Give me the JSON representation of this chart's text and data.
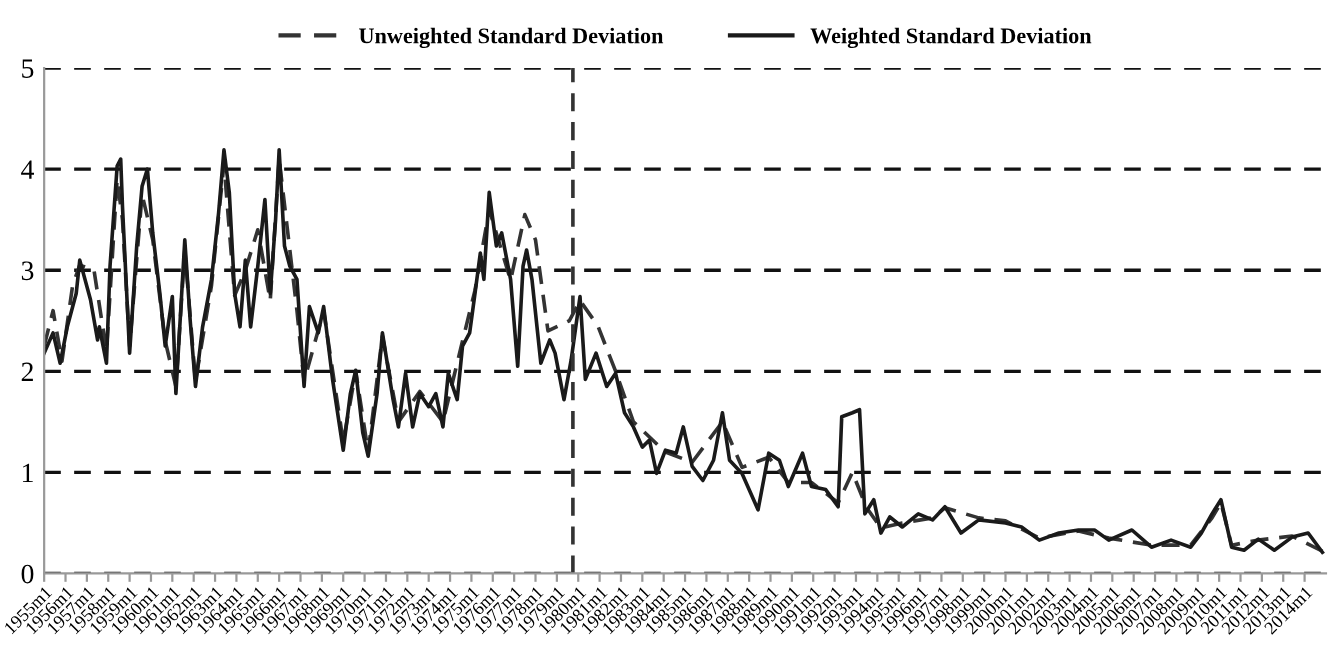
{
  "chart_data": {
    "type": "line",
    "xlim": [
      "1955-01",
      "2015-01"
    ],
    "xticks": [
      {
        "value": "1955-01",
        "label": "1955m1"
      },
      {
        "value": "1956-01",
        "label": "1956m1"
      },
      {
        "value": "1957-01",
        "label": "1957m1"
      },
      {
        "value": "1958-01",
        "label": "1958m1"
      },
      {
        "value": "1959-01",
        "label": "1959m1"
      },
      {
        "value": "1960-01",
        "label": "1960m1"
      },
      {
        "value": "1961-01",
        "label": "1961m1"
      },
      {
        "value": "1962-01",
        "label": "1962m1"
      },
      {
        "value": "1963-01",
        "label": "1963m1"
      },
      {
        "value": "1964-01",
        "label": "1964m1"
      },
      {
        "value": "1965-01",
        "label": "1965m1"
      },
      {
        "value": "1966-01",
        "label": "1966m1"
      },
      {
        "value": "1967-01",
        "label": "1967m1"
      },
      {
        "value": "1968-01",
        "label": "1968m1"
      },
      {
        "value": "1969-01",
        "label": "1969m1"
      },
      {
        "value": "1970-01",
        "label": "1970m1"
      },
      {
        "value": "1971-01",
        "label": "1971m1"
      },
      {
        "value": "1972-01",
        "label": "1972m1"
      },
      {
        "value": "1973-01",
        "label": "1973m1"
      },
      {
        "value": "1974-01",
        "label": "1974m1"
      },
      {
        "value": "1975-01",
        "label": "1975m1"
      },
      {
        "value": "1976-01",
        "label": "1976m1"
      },
      {
        "value": "1977-01",
        "label": "1977m1"
      },
      {
        "value": "1978-01",
        "label": "1978m1"
      },
      {
        "value": "1979-01",
        "label": "1979m1"
      },
      {
        "value": "1980-01",
        "label": "1980m1"
      },
      {
        "value": "1981-01",
        "label": "1981m1"
      },
      {
        "value": "1982-01",
        "label": "1982m1"
      },
      {
        "value": "1983-01",
        "label": "1983m1"
      },
      {
        "value": "1984-01",
        "label": "1984m1"
      },
      {
        "value": "1985-01",
        "label": "1985m1"
      },
      {
        "value": "1986-01",
        "label": "1986m1"
      },
      {
        "value": "1987-01",
        "label": "1987m1"
      },
      {
        "value": "1988-01",
        "label": "1988m1"
      },
      {
        "value": "1989-01",
        "label": "1989m1"
      },
      {
        "value": "1990-01",
        "label": "1990m1"
      },
      {
        "value": "1991-01",
        "label": "1991m1"
      },
      {
        "value": "1992-01",
        "label": "1992m1"
      },
      {
        "value": "1993-01",
        "label": "1993m1"
      },
      {
        "value": "1994-01",
        "label": "1994m1"
      },
      {
        "value": "1995-01",
        "label": "1995m1"
      },
      {
        "value": "1996-01",
        "label": "1996m1"
      },
      {
        "value": "1997-01",
        "label": "1997m1"
      },
      {
        "value": "1998-01",
        "label": "1998m1"
      },
      {
        "value": "1999-01",
        "label": "1999m1"
      },
      {
        "value": "2000-01",
        "label": "2000m1"
      },
      {
        "value": "2001-01",
        "label": "2001m1"
      },
      {
        "value": "2002-01",
        "label": "2002m1"
      },
      {
        "value": "2003-01",
        "label": "2003m1"
      },
      {
        "value": "2004-01",
        "label": "2004m1"
      },
      {
        "value": "2005-01",
        "label": "2005m1"
      },
      {
        "value": "2006-01",
        "label": "2006m1"
      },
      {
        "value": "2007-01",
        "label": "2007m1"
      },
      {
        "value": "2008-01",
        "label": "2008m1"
      },
      {
        "value": "2009-01",
        "label": "2009m1"
      },
      {
        "value": "2010-01",
        "label": "2010m1"
      },
      {
        "value": "2011-01",
        "label": "2011m1"
      },
      {
        "value": "2012-01",
        "label": "2012m1"
      },
      {
        "value": "2013-01",
        "label": "2013m1"
      },
      {
        "value": "2014-01",
        "label": "2014m1"
      }
    ],
    "ylim": [
      0,
      5
    ],
    "yticks": [
      0,
      1,
      2,
      3,
      4,
      5
    ],
    "grid": "y",
    "legend": "top",
    "ref_lines": [
      {
        "axis": "x",
        "value": "1979-10",
        "color": "#333333",
        "line_style": "dashed"
      }
    ],
    "series": [
      {
        "name": "Unweighted Standard Deviation",
        "color": "#333333",
        "line_style": "dashed",
        "x": [
          "1955-01",
          "1955-06",
          "1955-11",
          "1956-05",
          "1956-09",
          "1957-05",
          "1957-12",
          "1958-06",
          "1958-09",
          "1959-01",
          "1959-08",
          "1960-02",
          "1960-09",
          "1961-03",
          "1961-08",
          "1962-02",
          "1962-11",
          "1963-06",
          "1963-12",
          "1964-06",
          "1965-01",
          "1965-08",
          "1966-01",
          "1966-11",
          "1967-03",
          "1968-02",
          "1969-01",
          "1969-08",
          "1970-03",
          "1970-11",
          "1971-08",
          "1972-08",
          "1973-09",
          "1974-08",
          "1975-03",
          "1975-11",
          "1976-11",
          "1977-07",
          "1978-01",
          "1978-08",
          "1979-08",
          "1980-02",
          "1980-12",
          "1981-10",
          "1982-08",
          "1983-05",
          "1984-02",
          "1985-05",
          "1986-10",
          "1987-09",
          "1988-12",
          "1989-11",
          "1990-12",
          "1992-03",
          "1992-11",
          "1993-07",
          "1994-03",
          "1995-03",
          "1996-08",
          "1997-03",
          "1998-10",
          "2000-01",
          "2001-08",
          "2003-06",
          "2004-11",
          "2006-11",
          "2008-09",
          "2009-09",
          "2010-02",
          "2010-08",
          "2011-11",
          "2013-06",
          "2014-11"
        ],
        "values": [
          2.25,
          2.6,
          2.1,
          2.85,
          3.05,
          3.0,
          2.2,
          3.9,
          3.5,
          2.25,
          3.75,
          3.3,
          2.3,
          1.85,
          3.2,
          1.9,
          2.85,
          4.05,
          2.75,
          3.0,
          3.4,
          2.7,
          4.1,
          2.6,
          1.9,
          2.6,
          1.3,
          2.0,
          1.2,
          2.35,
          1.5,
          1.8,
          1.5,
          2.3,
          2.8,
          3.6,
          2.9,
          3.55,
          3.3,
          2.4,
          2.5,
          2.7,
          2.45,
          2.0,
          1.5,
          1.35,
          1.2,
          1.1,
          1.5,
          1.05,
          1.15,
          0.9,
          0.9,
          0.7,
          1.0,
          0.65,
          0.45,
          0.5,
          0.55,
          0.65,
          0.55,
          0.52,
          0.35,
          0.42,
          0.35,
          0.28,
          0.28,
          0.55,
          0.7,
          0.28,
          0.33,
          0.37,
          0.22
        ]
      },
      {
        "name": "Weighted Standard Deviation",
        "color": "#1a1a1a",
        "line_style": "solid",
        "x": [
          "1955-01",
          "1955-06",
          "1955-10",
          "1956-02",
          "1956-07",
          "1956-09",
          "1957-03",
          "1957-07",
          "1957-08",
          "1957-12",
          "1958-02",
          "1958-06",
          "1958-08",
          "1958-09",
          "1959-01",
          "1959-05",
          "1959-08",
          "1959-11",
          "1960-02",
          "1960-06",
          "1960-09",
          "1961-01",
          "1961-03",
          "1961-08",
          "1961-11",
          "1962-02",
          "1962-06",
          "1962-11",
          "1963-03",
          "1963-06",
          "1963-09",
          "1963-12",
          "1964-03",
          "1964-06",
          "1964-09",
          "1965-01",
          "1965-05",
          "1965-08",
          "1965-11",
          "1966-01",
          "1966-04",
          "1966-07",
          "1966-11",
          "1967-03",
          "1967-06",
          "1967-11",
          "1968-02",
          "1968-07",
          "1969-01",
          "1969-05",
          "1969-08",
          "1969-12",
          "1970-03",
          "1970-08",
          "1970-11",
          "1971-05",
          "1971-08",
          "1971-12",
          "1972-04",
          "1972-08",
          "1973-01",
          "1973-05",
          "1973-09",
          "1973-12",
          "1974-05",
          "1974-08",
          "1974-12",
          "1975-03",
          "1975-06",
          "1975-08",
          "1975-11",
          "1976-03",
          "1976-06",
          "1976-11",
          "1977-03",
          "1977-06",
          "1977-08",
          "1977-11",
          "1978-04",
          "1978-09",
          "1978-12",
          "1979-05",
          "1979-09",
          "1980-02",
          "1980-05",
          "1980-11",
          "1981-05",
          "1981-10",
          "1982-03",
          "1982-08",
          "1983-01",
          "1983-05",
          "1983-09",
          "1984-02",
          "1984-08",
          "1984-12",
          "1985-05",
          "1985-11",
          "1986-05",
          "1986-10",
          "1987-02",
          "1987-09",
          "1988-06",
          "1988-12",
          "1989-06",
          "1989-11",
          "1990-07",
          "1990-12",
          "1991-08",
          "1992-03",
          "1992-05",
          "1992-11",
          "1993-03",
          "1993-06",
          "1993-11",
          "1994-03",
          "1994-08",
          "1995-03",
          "1995-12",
          "1996-08",
          "1997-03",
          "1997-12",
          "1998-10",
          "2000-01",
          "2000-10",
          "2001-08",
          "2002-07",
          "2003-06",
          "2004-03",
          "2004-11",
          "2005-12",
          "2006-11",
          "2007-10",
          "2008-09",
          "2009-03",
          "2009-09",
          "2010-02",
          "2010-08",
          "2011-03",
          "2011-11",
          "2012-08",
          "2013-06",
          "2014-03",
          "2014-11"
        ],
        "values": [
          2.18,
          2.38,
          2.08,
          2.44,
          2.77,
          3.1,
          2.71,
          2.31,
          2.44,
          2.08,
          3.04,
          4.03,
          4.1,
          3.63,
          2.18,
          3.24,
          3.83,
          4.0,
          3.37,
          2.77,
          2.25,
          2.74,
          1.78,
          3.3,
          2.51,
          1.85,
          2.44,
          2.91,
          3.57,
          4.19,
          3.77,
          2.77,
          2.44,
          3.1,
          2.44,
          3.04,
          3.7,
          2.77,
          3.5,
          4.19,
          3.24,
          3.04,
          2.91,
          1.85,
          2.64,
          2.38,
          2.64,
          1.92,
          1.22,
          1.78,
          2.01,
          1.39,
          1.16,
          1.78,
          2.38,
          1.72,
          1.45,
          1.98,
          1.45,
          1.78,
          1.65,
          1.78,
          1.45,
          1.98,
          1.72,
          2.25,
          2.38,
          2.77,
          3.17,
          2.91,
          3.77,
          3.24,
          3.37,
          2.91,
          2.05,
          3.04,
          3.2,
          2.91,
          2.08,
          2.31,
          2.18,
          1.72,
          2.11,
          2.74,
          1.92,
          2.18,
          1.85,
          1.98,
          1.59,
          1.45,
          1.25,
          1.32,
          0.99,
          1.22,
          1.19,
          1.45,
          1.06,
          0.92,
          1.12,
          1.59,
          1.12,
          0.99,
          0.63,
          1.19,
          1.12,
          0.86,
          1.19,
          0.86,
          0.83,
          0.66,
          1.55,
          1.59,
          1.62,
          0.59,
          0.73,
          0.4,
          0.56,
          0.46,
          0.59,
          0.53,
          0.66,
          0.4,
          0.53,
          0.5,
          0.46,
          0.33,
          0.4,
          0.43,
          0.43,
          0.33,
          0.43,
          0.26,
          0.33,
          0.26,
          0.4,
          0.59,
          0.73,
          0.26,
          0.23,
          0.34,
          0.23,
          0.36,
          0.4,
          0.21
        ]
      }
    ]
  }
}
